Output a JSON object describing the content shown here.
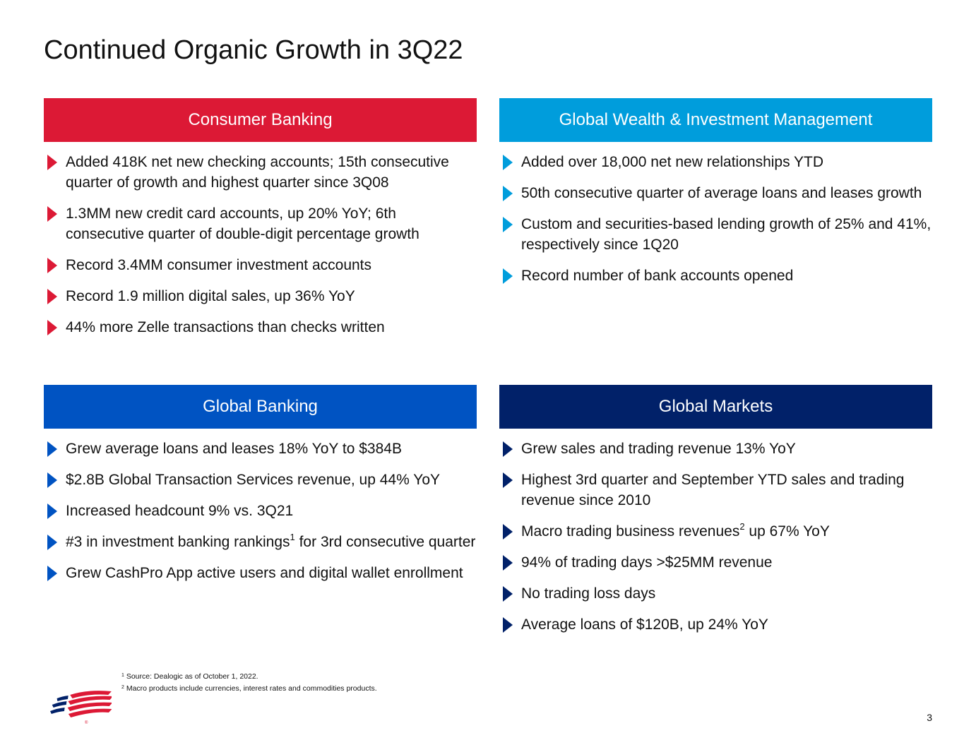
{
  "title": "Continued Organic Growth in 3Q22",
  "colors": {
    "consumer": "#dc1935",
    "gwim": "#009ddc",
    "global_banking": "#0053c2",
    "global_markets": "#012169"
  },
  "panels": {
    "consumer": {
      "title": "Consumer Banking",
      "bullets": [
        "Added 418K net new checking accounts; 15th consecutive quarter of growth and highest quarter since 3Q08",
        "1.3MM new credit card accounts, up 20% YoY; 6th consecutive quarter of double-digit percentage growth",
        "Record 3.4MM consumer investment accounts",
        "Record 1.9 million digital sales, up 36% YoY",
        "44% more Zelle transactions than checks written"
      ]
    },
    "gwim": {
      "title": "Global Wealth & Investment Management",
      "bullets": [
        "Added over 18,000 net new relationships YTD",
        "50th consecutive quarter of average loans and leases growth",
        "Custom and securities-based lending growth of 25% and 41%, respectively since 1Q20",
        "Record number of bank accounts opened"
      ]
    },
    "global_banking": {
      "title": "Global Banking",
      "bullets": [
        "Grew average loans and leases 18% YoY to $384B",
        "$2.8B Global Transaction Services revenue, up 44% YoY",
        "Increased headcount 9% vs. 3Q21",
        {
          "pre": "#3 in investment banking rankings",
          "sup": "1",
          "post": " for 3rd consecutive quarter"
        },
        "Grew CashPro App active users and digital wallet enrollment"
      ]
    },
    "global_markets": {
      "title": "Global Markets",
      "bullets": [
        "Grew sales and trading revenue 13% YoY",
        "Highest 3rd quarter and September YTD sales and trading revenue since 2010",
        {
          "pre": "Macro trading business revenues",
          "sup": "2",
          "post": " up 67% YoY"
        },
        "94% of trading days >$25MM revenue",
        "No trading loss days",
        "Average loans of $120B, up 24% YoY"
      ]
    }
  },
  "footnotes": [
    {
      "marker": "1",
      "text": "Source: Dealogic as of October 1, 2022."
    },
    {
      "marker": "2",
      "text": "Macro products include currencies, interest rates and commodities products."
    }
  ],
  "logo_icon": "bank-of-america-flag-logo",
  "page_number": "3"
}
